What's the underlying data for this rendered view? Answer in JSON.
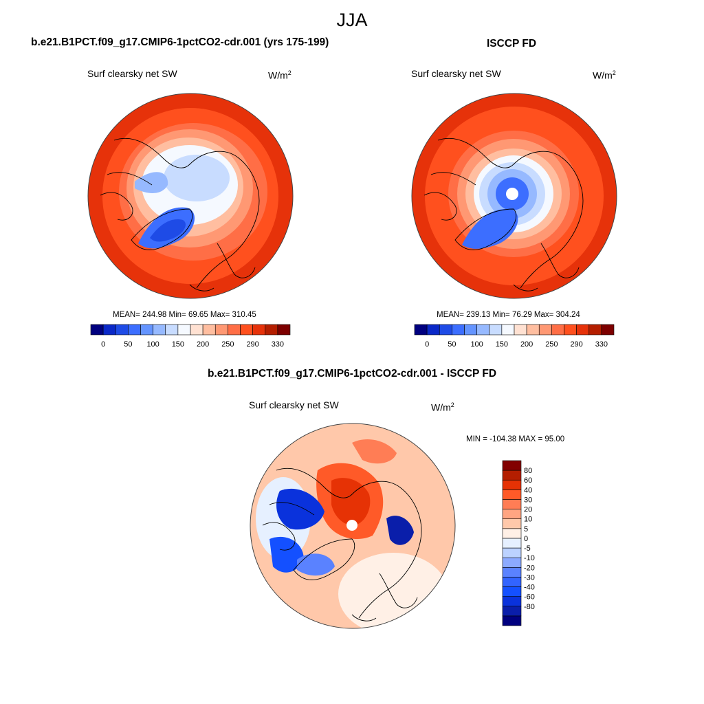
{
  "title": "JJA",
  "colors": {
    "abs_scale": [
      "#00007f",
      "#0a28c8",
      "#1e4be6",
      "#3c6eff",
      "#6494ff",
      "#96b9ff",
      "#c8dcff",
      "#f5f9ff",
      "#ffe1d2",
      "#ffbea0",
      "#ff9873",
      "#ff6e46",
      "#ff501e",
      "#e6320a",
      "#b41e00",
      "#7d0000"
    ],
    "diff_scale": [
      "#00007f",
      "#0a1eaa",
      "#0a32dc",
      "#1450ff",
      "#3264ff",
      "#5a82ff",
      "#8caaff",
      "#bcd2ff",
      "#e6f0ff",
      "#fff0e6",
      "#ffc8aa",
      "#ffa582",
      "#ff7d55",
      "#ff5a28",
      "#e63205",
      "#b41e00",
      "#820000"
    ],
    "coast": "#000000",
    "outline": "#444444"
  },
  "panels": {
    "model": {
      "title": "b.e21.B1PCT.f09_g17.CMIP6-1pctCO2-cdr.001 (yrs 175-199)",
      "variable": "Surf clearsky net SW",
      "units": "W/m",
      "units_sup": "2",
      "stats": "MEAN= 244.98  Min=  69.65  Max= 310.45"
    },
    "obs": {
      "title": "ISCCP FD",
      "variable": "Surf clearsky net SW",
      "units": "W/m",
      "units_sup": "2",
      "stats": "MEAN= 239.13  Min=  76.29  Max= 304.24"
    },
    "diff": {
      "title": "b.e21.B1PCT.f09_g17.CMIP6-1pctCO2-cdr.001 - ISCCP FD",
      "variable": "Surf clearsky net SW",
      "units": "W/m",
      "units_sup": "2",
      "stats": "MIN = -104.38 MAX =  95.00"
    }
  },
  "chart_data": [
    {
      "type": "heatmap",
      "projection": "north-polar-stereographic",
      "title": "b.e21.B1PCT.f09_g17.CMIP6-1pctCO2-cdr.001 (yrs 175-199)",
      "variable": "Surf clearsky net SW",
      "units": "W/m2",
      "mean": 244.98,
      "min": 69.65,
      "max": 310.45,
      "colorbar_ticks": [
        "0",
        "50",
        "100",
        "150",
        "200",
        "250",
        "290",
        "330"
      ],
      "colorbar_orientation": "horizontal"
    },
    {
      "type": "heatmap",
      "projection": "north-polar-stereographic",
      "title": "ISCCP FD",
      "variable": "Surf clearsky net SW",
      "units": "W/m2",
      "mean": 239.13,
      "min": 76.29,
      "max": 304.24,
      "colorbar_ticks": [
        "0",
        "50",
        "100",
        "150",
        "200",
        "250",
        "290",
        "330"
      ],
      "colorbar_orientation": "horizontal"
    },
    {
      "type": "heatmap",
      "projection": "north-polar-stereographic",
      "title": "b.e21.B1PCT.f09_g17.CMIP6-1pctCO2-cdr.001 - ISCCP FD",
      "variable": "Surf clearsky net SW",
      "units": "W/m2",
      "min": -104.38,
      "max": 95.0,
      "colorbar_ticks": [
        "80",
        "60",
        "40",
        "30",
        "20",
        "10",
        "5",
        "0",
        "-5",
        "-10",
        "-20",
        "-30",
        "-40",
        "-60",
        "-80"
      ],
      "colorbar_orientation": "vertical"
    }
  ]
}
